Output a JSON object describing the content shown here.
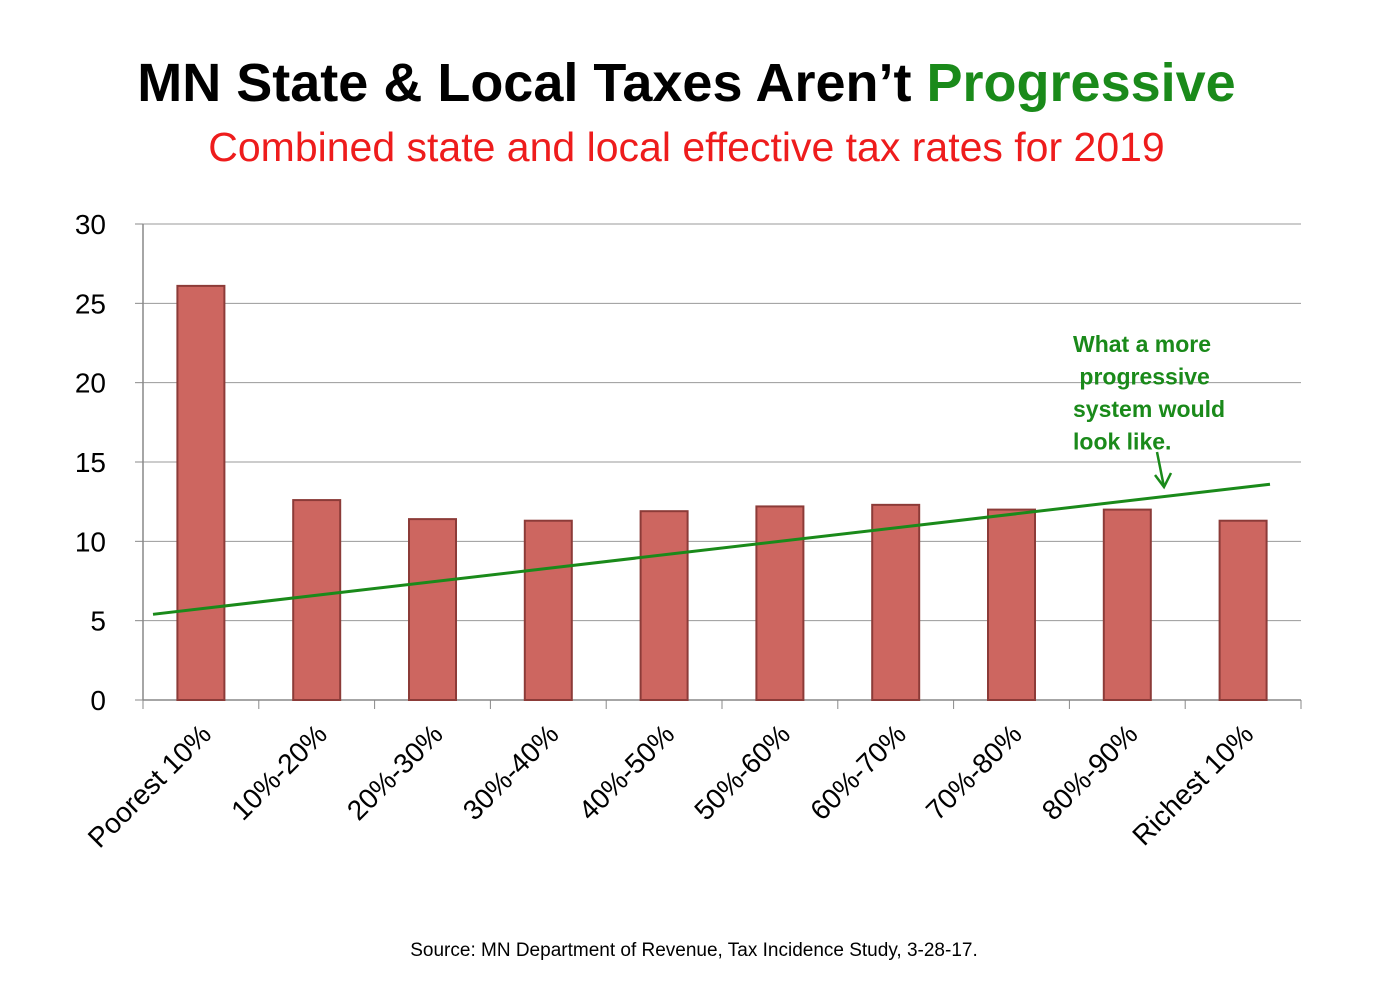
{
  "title": {
    "main": "MN State & Local Taxes Aren’t",
    "accent": "Progressive"
  },
  "subtitle": "Combined state and local effective tax rates for 2019",
  "source": "Source: MN Department of Revenue, Tax Incidence Study, 3-28-17.",
  "colors": {
    "bar_fill": "#cd6660",
    "bar_stroke": "#8c3b38",
    "trend_line": "#1a8a1a",
    "annotation": "#1a8a1a",
    "subtitle": "#ee1c1c",
    "gridline": "#9a9a9a"
  },
  "chart_data": {
    "type": "bar",
    "categories": [
      "Poorest 10%",
      "10%-20%",
      "20%-30%",
      "30%-40%",
      "40%-50%",
      "50%-60%",
      "60%-70%",
      "70%-80%",
      "80%-90%",
      "Richest 10%"
    ],
    "values": [
      26.1,
      12.6,
      11.4,
      11.3,
      11.9,
      12.2,
      12.3,
      12.0,
      12.0,
      11.3
    ],
    "ylim": [
      0,
      30
    ],
    "yticks": [
      "0",
      "5",
      "10",
      "15",
      "20",
      "25",
      "30"
    ],
    "grid": true,
    "trend_line": {
      "start": 5.4,
      "end": 13.6
    },
    "annotation": {
      "lines": [
        "What a more",
        " progressive",
        "system would",
        "look like."
      ]
    }
  }
}
